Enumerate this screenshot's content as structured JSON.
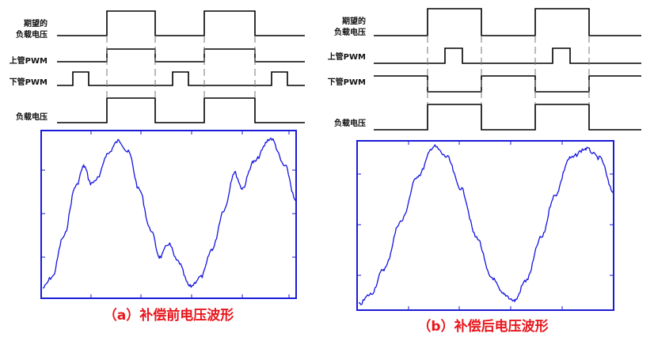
{
  "left": {
    "labels": {
      "desired_line1": "期望的",
      "desired_line2": "负载电压",
      "upper_pwm": "上管PWM",
      "lower_pwm": "下管PWM",
      "load_voltage": "负载电压"
    },
    "caption": "（a）补偿前电压波形"
  },
  "right": {
    "labels": {
      "desired_line1": "期望的",
      "desired_line2": "负载电压",
      "upper_pwm": "上管PWM",
      "lower_pwm": "下管PWM",
      "load_voltage": "负载电压"
    },
    "caption": "（b）补偿后电压波形"
  },
  "colors": {
    "caption": "#e8151b",
    "plot_frame": "#1a1ad8",
    "waveform": "#1414e0"
  }
}
